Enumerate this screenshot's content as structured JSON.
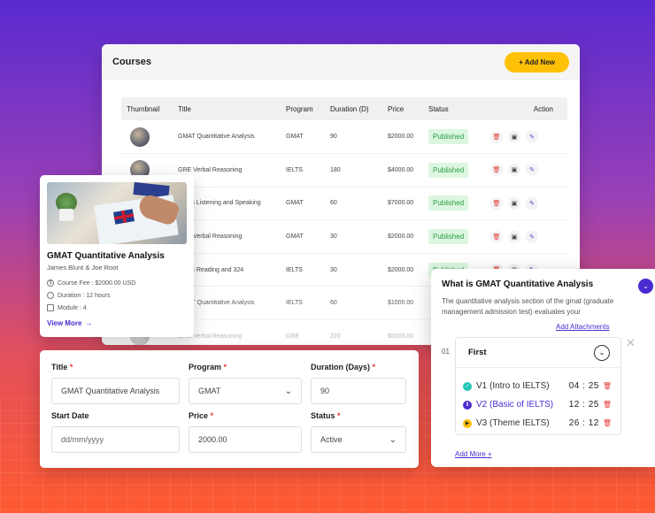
{
  "courses": {
    "title": "Courses",
    "add_new_label": "+ Add New",
    "columns": [
      "Thumbnail",
      "Title",
      "Program",
      "Duration (D)",
      "Price",
      "Status",
      "Action"
    ],
    "rows": [
      {
        "title": "GMAT Quantitative Analysis",
        "program": "GMAT",
        "duration": "90",
        "price": "$2000.00",
        "status": "Published"
      },
      {
        "title": "GRE Verbal Reasoning",
        "program": "IELTS",
        "duration": "180",
        "price": "$4000.00",
        "status": "Published"
      },
      {
        "title": "IELTS Listening and Speaking",
        "program": "GMAT",
        "duration": "60",
        "price": "$7000.00",
        "status": "Published"
      },
      {
        "title": "GRE Verbal Reasoning",
        "program": "GMAT",
        "duration": "30",
        "price": "$2000.00",
        "status": "Published"
      },
      {
        "title": "IELTS Reading and 324",
        "program": "IELTS",
        "duration": "30",
        "price": "$2000.00",
        "status": "Published"
      },
      {
        "title": "GMAT Quantitative Analysis",
        "program": "IELTS",
        "duration": "60",
        "price": "$1000.00",
        "status": ""
      },
      {
        "title": "GRE Verbal Reasoning",
        "program": "GRE",
        "duration": "220",
        "price": "$5000.00",
        "status": ""
      }
    ]
  },
  "card": {
    "title": "GMAT Quantitative Analysis",
    "authors": "James Blunt & Joe Root",
    "fee": "Course Fee : $2000.00 USD",
    "duration": "Duration : 12 hours",
    "module": "Module : 4",
    "view_more": "View More"
  },
  "form": {
    "title_label": "Title",
    "title_value": "GMAT Quantitative Analysis",
    "program_label": "Program",
    "program_value": "GMAT",
    "duration_label": "Duration (Days)",
    "duration_value": "90",
    "start_label": "Start Date",
    "start_placeholder": "dd/mm/yyyy",
    "price_label": "Price",
    "price_value": "2000.00",
    "status_label": "Status",
    "status_value": "Active",
    "required_mark": "*"
  },
  "gmat": {
    "title": "What is GMAT Quantitative Analysis",
    "description": "The quantitative analysis section of the gmat (graduate management admission test) evaluates your",
    "add_attachments": "Add Attachments",
    "row_number": "01",
    "section_title": "First",
    "lessons": [
      {
        "name": "V1 (Intro to IELTS)",
        "time": "04 : 25",
        "state": "done"
      },
      {
        "name": "V2 (Basic of IELTS)",
        "time": "12 : 25",
        "state": "pause"
      },
      {
        "name": "V3 (Theme IELTS)",
        "time": "26 : 12",
        "state": "play"
      }
    ],
    "add_more": "Add More +"
  },
  "colors": {
    "accent": "#4b2bd1",
    "button_yellow": "#ffc107",
    "published_green": "#2a9d46",
    "delete_red": "#e53935"
  }
}
